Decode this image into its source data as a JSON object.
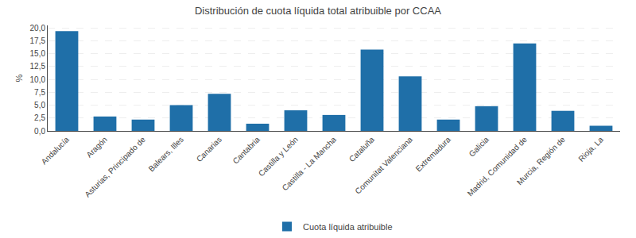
{
  "chart_data": {
    "type": "bar",
    "title": "Distribución de cuota líquida total atribuible por CCAA",
    "ylabel": "%",
    "categories": [
      "Andalucía",
      "Aragón",
      "Asturias, Principado de",
      "Balears, Illes",
      "Canarias",
      "Cantabria",
      "Castilla y León",
      "Castilla - La Mancha",
      "Cataluña",
      "Comunitat Valenciana",
      "Extremadura",
      "Galicia",
      "Madrid, Comunidad de",
      "Murcia, Región de",
      "Rioja, La"
    ],
    "series": [
      {
        "name": "Cuota líquida atribuible",
        "color": "#1f6fa8",
        "values": [
          19.4,
          2.8,
          2.2,
          5.0,
          7.2,
          1.4,
          4.0,
          3.1,
          15.8,
          10.6,
          2.2,
          4.8,
          17.0,
          3.9,
          1.0
        ]
      }
    ],
    "ylim": [
      0,
      20.5
    ],
    "yticks": [
      {
        "value": 0.0,
        "label": "0,0"
      },
      {
        "value": 2.5,
        "label": "2,5"
      },
      {
        "value": 5.0,
        "label": "5,0"
      },
      {
        "value": 7.5,
        "label": "7,5"
      },
      {
        "value": 10.0,
        "label": "10,0"
      },
      {
        "value": 12.5,
        "label": "12,5"
      },
      {
        "value": 15.0,
        "label": "15,0"
      },
      {
        "value": 17.5,
        "label": "17,5"
      },
      {
        "value": 20.0,
        "label": "20,0"
      }
    ],
    "grid": true,
    "legend": "bottom"
  }
}
